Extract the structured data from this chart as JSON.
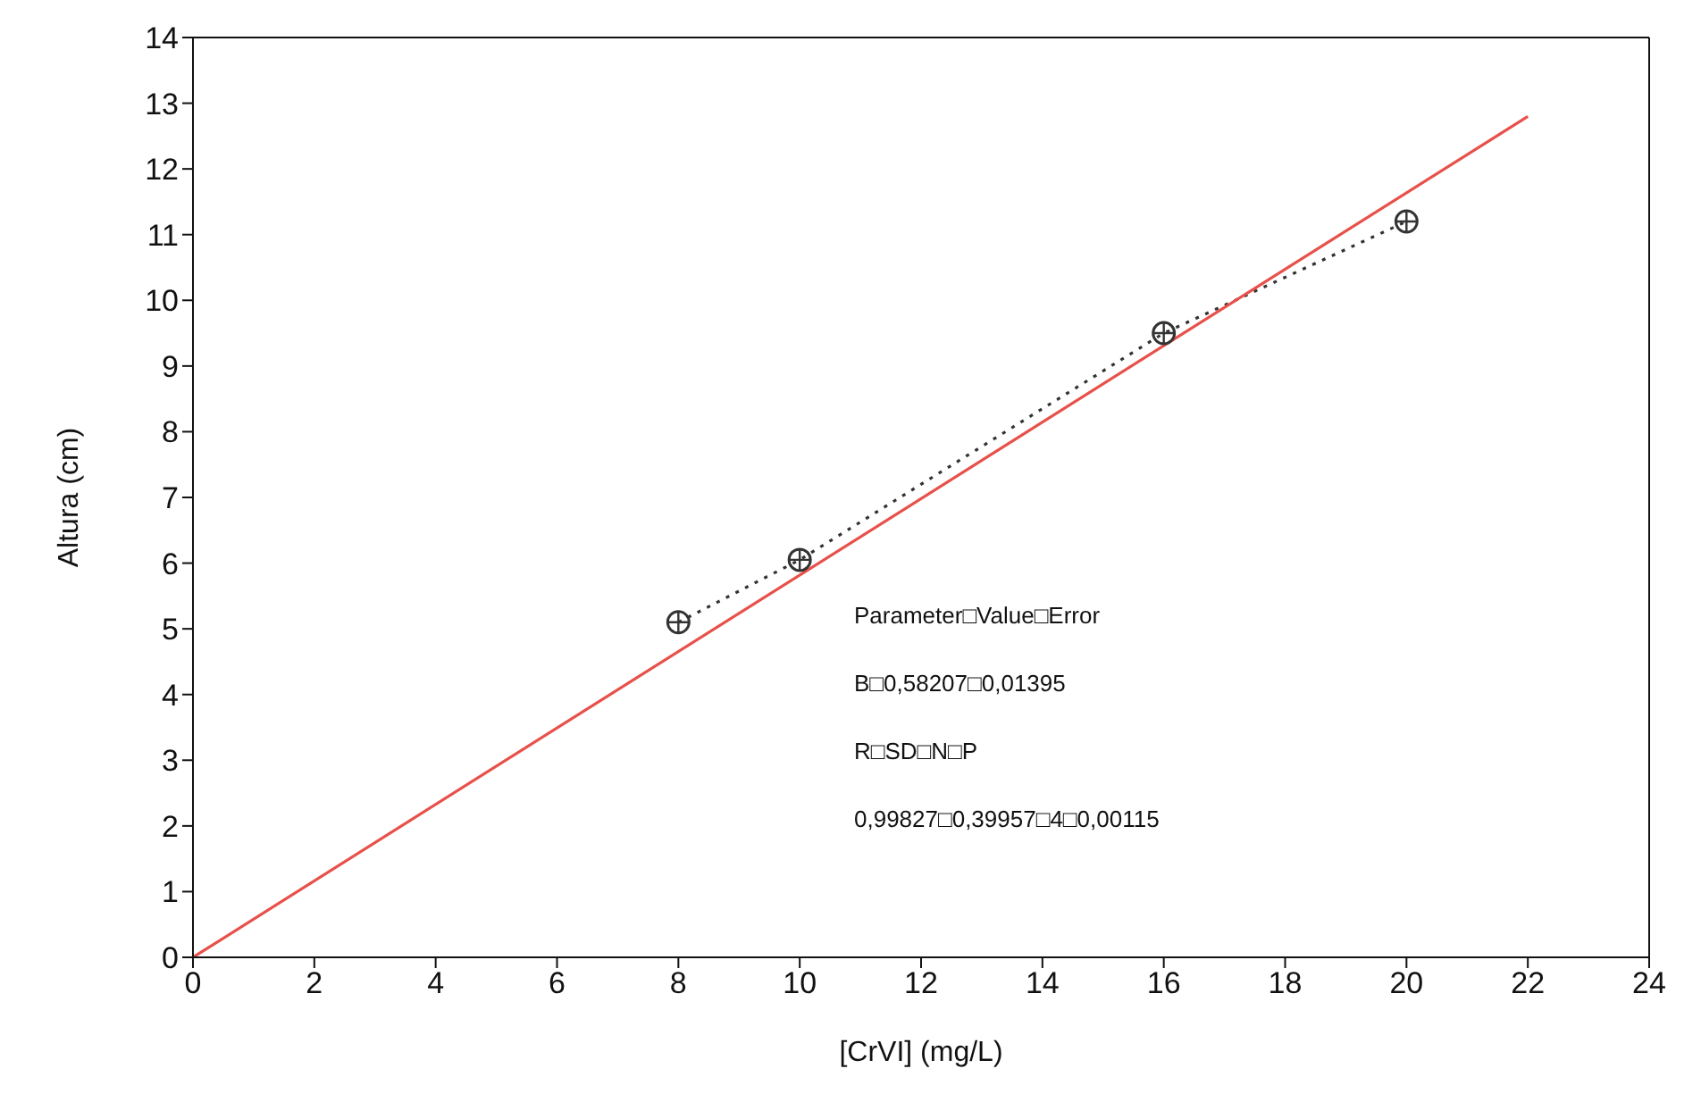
{
  "chart_data": {
    "type": "line",
    "xlabel": "[CrVI] (mg/L)",
    "ylabel": "Altura (cm)",
    "xlim": [
      0,
      24
    ],
    "xticks": [
      0,
      2,
      4,
      6,
      8,
      10,
      12,
      14,
      16,
      18,
      20,
      22,
      24
    ],
    "ylim": [
      0,
      14
    ],
    "yticks": [
      0,
      1,
      2,
      3,
      4,
      5,
      6,
      7,
      8,
      9,
      10,
      11,
      12,
      13,
      14
    ],
    "series": [
      {
        "x": [
          8,
          10,
          16,
          20
        ],
        "values": [
          5.1,
          6.05,
          9.5,
          11.2
        ],
        "color": "#333333",
        "marker": "circle",
        "line_style": "dotted"
      },
      {
        "x": [
          0,
          22
        ],
        "values": [
          0,
          12.8
        ],
        "color": "#e8504a",
        "marker": "none",
        "line_style": "solid"
      }
    ],
    "annotations": [
      "Parameter□Value□Error",
      "B□0,58207□0,01395",
      "R□SD□N□P",
      "0,99827□0,39957□4□0,00115"
    ]
  }
}
